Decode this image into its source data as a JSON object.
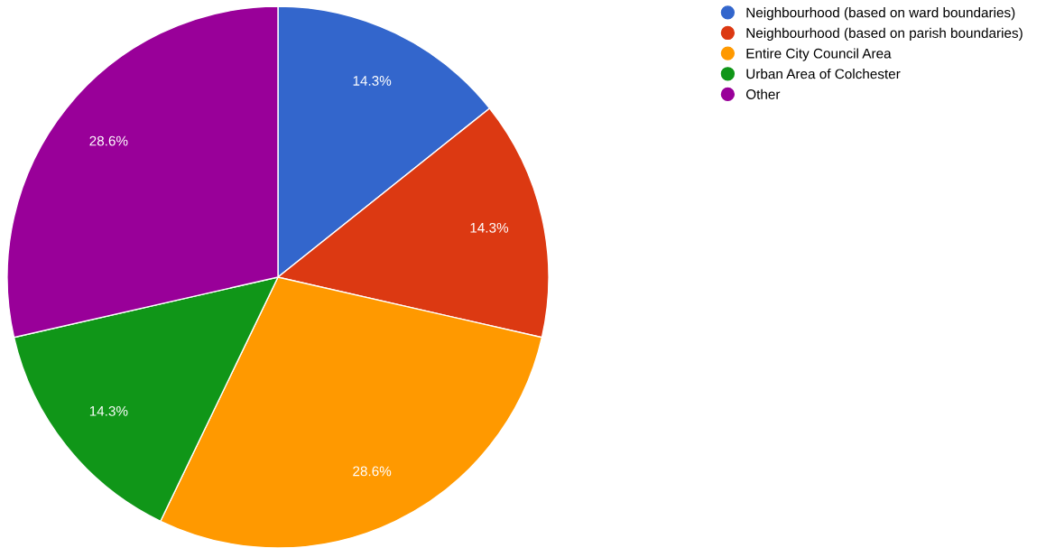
{
  "chart_data": {
    "type": "pie",
    "categories": [
      "Neighbourhood (based on ward boundaries)",
      "Neighbourhood (based on parish boundaries)",
      "Entire City Council Area",
      "Urban Area of Colchester",
      "Other"
    ],
    "values": [
      14.3,
      14.3,
      28.6,
      14.3,
      28.6
    ],
    "colors": [
      "#3366cc",
      "#dc3912",
      "#ff9900",
      "#109618",
      "#990099"
    ],
    "value_labels": [
      "14.3%",
      "14.3%",
      "28.6%",
      "14.3%",
      "28.6%"
    ],
    "legend": "top right"
  }
}
